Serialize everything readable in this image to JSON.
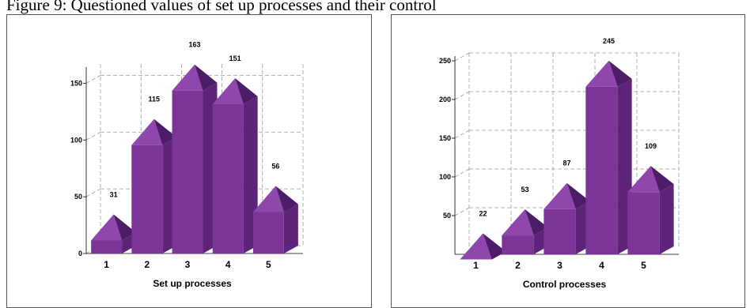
{
  "figure_caption": "Figure 9: Questioned values of set up processes and their control",
  "colors": {
    "bar_front": "#7a3597",
    "bar_side": "#5e2479",
    "bar_top": "#8f47ad",
    "bar_roof_side": "#4d1c66",
    "grid": "#9a9a9a",
    "axis": "#000000"
  },
  "chart_data": [
    {
      "type": "bar",
      "style": "3d-house-columns",
      "categories": [
        "1",
        "2",
        "3",
        "4",
        "5"
      ],
      "values": [
        31,
        115,
        163,
        151,
        56
      ],
      "value_labels": [
        "31",
        "115",
        "163",
        "151",
        "56"
      ],
      "xlabel": "Set up processes",
      "ylabel": "",
      "yticks": [
        0,
        50,
        100,
        150
      ],
      "ylim": [
        0,
        160
      ],
      "grid": true
    },
    {
      "type": "bar",
      "style": "3d-house-columns",
      "categories": [
        "1",
        "2",
        "3",
        "4",
        "5"
      ],
      "values": [
        22,
        53,
        87,
        245,
        109
      ],
      "value_labels": [
        "22",
        "53",
        "87",
        "245",
        "109"
      ],
      "xlabel": "Control processes",
      "ylabel": "",
      "yticks": [
        50,
        100,
        150,
        200,
        250
      ],
      "ylim": [
        0,
        250
      ],
      "grid": true
    }
  ]
}
